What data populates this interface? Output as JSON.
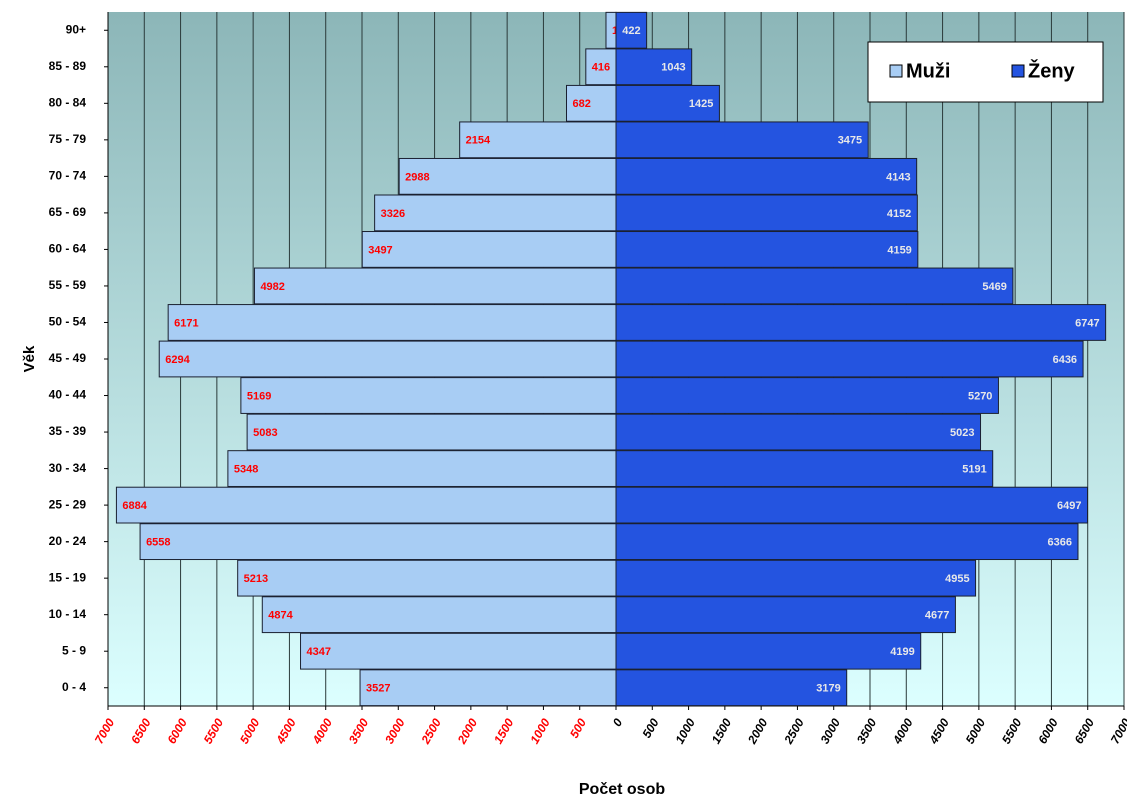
{
  "chart_data": {
    "type": "pyramid",
    "x_label": "Počet osob",
    "y_label": "Věk",
    "categories": [
      "0 - 4",
      "5 - 9",
      "10 - 14",
      "15 - 19",
      "20 - 24",
      "25 - 29",
      "30 - 34",
      "35 - 39",
      "40 - 44",
      "45 - 49",
      "50 - 54",
      "55 - 59",
      "60 - 64",
      "65 - 69",
      "70 - 74",
      "75 - 79",
      "80 - 84",
      "85 - 89",
      "90+"
    ],
    "series": [
      {
        "name": "Muži",
        "color": "#a8cdf4",
        "label_color": "#ff0000",
        "side": "left",
        "values": [
          3527,
          4347,
          4874,
          5213,
          6558,
          6884,
          5348,
          5083,
          5169,
          6294,
          6171,
          4982,
          3497,
          3326,
          2988,
          2154,
          682,
          416,
          138
        ]
      },
      {
        "name": "Ženy",
        "color": "#2454e0",
        "label_color": "#e8e8e8",
        "side": "right",
        "values": [
          3179,
          4199,
          4677,
          4955,
          6366,
          6497,
          5191,
          5023,
          5270,
          6436,
          6747,
          5469,
          4159,
          4152,
          4143,
          3475,
          1425,
          1043,
          422
        ]
      }
    ],
    "xlim": [
      -7000,
      7000
    ],
    "xticks": [
      {
        "value": -7000,
        "label": "7000"
      },
      {
        "value": -6500,
        "label": "6500"
      },
      {
        "value": -6000,
        "label": "6000"
      },
      {
        "value": -5500,
        "label": "5500"
      },
      {
        "value": -5000,
        "label": "5000"
      },
      {
        "value": -4500,
        "label": "4500"
      },
      {
        "value": -4000,
        "label": "4000"
      },
      {
        "value": -3500,
        "label": "3500"
      },
      {
        "value": -3000,
        "label": "3000"
      },
      {
        "value": -2500,
        "label": "2500"
      },
      {
        "value": -2000,
        "label": "2000"
      },
      {
        "value": -1500,
        "label": "1500"
      },
      {
        "value": -1000,
        "label": "1000"
      },
      {
        "value": -500,
        "label": "500"
      },
      0,
      500,
      1000,
      1500,
      2000,
      2500,
      3000,
      3500,
      4000,
      4500,
      5000,
      5500,
      6000,
      6500,
      7000
    ],
    "grid": true,
    "legend": "top-right"
  }
}
